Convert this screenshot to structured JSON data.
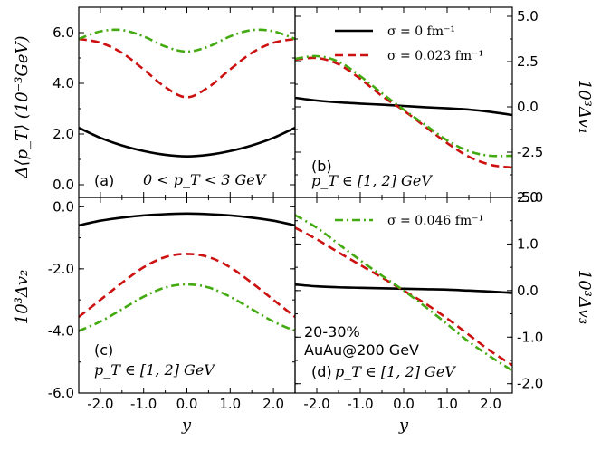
{
  "chart_data": [
    {
      "id": "a",
      "type": "line",
      "panel_label": "(a)",
      "annotation": "0 < p_T < 3 GeV",
      "ylabel": "Δ⟨p_T⟩ (10⁻³GeV)",
      "xlim": [
        -2.5,
        2.5
      ],
      "ylim": [
        -0.5,
        7.0
      ],
      "yticks": [
        0.0,
        2.0,
        4.0,
        6.0
      ],
      "ytick_labels": [
        "0.0",
        "2.0",
        "4.0",
        "6.0"
      ],
      "series": [
        {
          "name": "σ = 0 fm⁻¹",
          "style": "solid",
          "color": "#000000",
          "x": [
            -2.5,
            -2.0,
            -1.5,
            -1.0,
            -0.5,
            0.0,
            0.5,
            1.0,
            1.5,
            2.0,
            2.5
          ],
          "values": [
            2.25,
            1.85,
            1.55,
            1.33,
            1.18,
            1.12,
            1.18,
            1.33,
            1.55,
            1.85,
            2.25
          ]
        },
        {
          "name": "σ = 0.023 fm⁻¹",
          "style": "dashed",
          "color": "#cc1111",
          "x": [
            -2.5,
            -2.0,
            -1.5,
            -1.0,
            -0.5,
            0.0,
            0.5,
            1.0,
            1.5,
            2.0,
            2.5
          ],
          "values": [
            5.75,
            5.6,
            5.2,
            4.55,
            3.85,
            3.45,
            3.85,
            4.55,
            5.2,
            5.6,
            5.75
          ]
        },
        {
          "name": "σ = 0.046 fm⁻¹",
          "style": "dashdot",
          "color": "#44aa11",
          "x": [
            -2.5,
            -2.0,
            -1.5,
            -1.0,
            -0.5,
            0.0,
            0.5,
            1.0,
            1.5,
            2.0,
            2.5
          ],
          "values": [
            5.75,
            6.05,
            6.1,
            5.85,
            5.45,
            5.25,
            5.45,
            5.85,
            6.1,
            6.05,
            5.75
          ]
        }
      ]
    },
    {
      "id": "b",
      "type": "line",
      "panel_label": "(b)",
      "annotation": "p_T ∈ [1, 2] GeV",
      "ylabel": "10³Δv₁",
      "xlim": [
        -2.5,
        2.5
      ],
      "ylim": [
        -5.0,
        5.5
      ],
      "yticks": [
        5.0,
        2.5,
        0.0,
        -2.5,
        -5.0
      ],
      "ytick_labels": [
        "5.0",
        "2.5",
        "0.0",
        "-2.5",
        "-5.0"
      ],
      "series": [
        {
          "name": "σ = 0 fm⁻¹",
          "style": "solid",
          "color": "#000000",
          "x": [
            -2.5,
            -2.0,
            -1.5,
            -1.0,
            -0.5,
            0.0,
            0.5,
            1.0,
            1.5,
            2.0,
            2.5
          ],
          "values": [
            0.5,
            0.35,
            0.25,
            0.18,
            0.12,
            0.05,
            -0.02,
            -0.08,
            -0.15,
            -0.28,
            -0.45
          ]
        },
        {
          "name": "σ = 0.023 fm⁻¹",
          "style": "dashed",
          "color": "#cc1111",
          "x": [
            -2.5,
            -2.0,
            -1.5,
            -1.0,
            -0.5,
            0.0,
            0.5,
            1.0,
            1.5,
            2.0,
            2.5
          ],
          "values": [
            2.6,
            2.7,
            2.35,
            1.55,
            0.6,
            -0.2,
            -1.1,
            -2.0,
            -2.75,
            -3.2,
            -3.35
          ]
        },
        {
          "name": "σ = 0.046 fm⁻¹",
          "style": "dashdot",
          "color": "#44aa11",
          "x": [
            -2.5,
            -2.0,
            -1.5,
            -1.0,
            -0.5,
            0.0,
            0.5,
            1.0,
            1.5,
            2.0,
            2.5
          ],
          "values": [
            2.65,
            2.8,
            2.5,
            1.7,
            0.75,
            -0.15,
            -1.0,
            -1.85,
            -2.45,
            -2.7,
            -2.7
          ]
        }
      ]
    },
    {
      "id": "c",
      "type": "line",
      "panel_label": "(c)",
      "annotation": "p_T ∈ [1, 2] GeV",
      "ylabel": "10³Δv₂",
      "xlabel": "y",
      "xlim": [
        -2.5,
        2.5
      ],
      "ylim": [
        -6.0,
        0.3
      ],
      "yticks": [
        0.0,
        -2.0,
        -4.0,
        -6.0
      ],
      "ytick_labels": [
        "0.0",
        "-2.0",
        "-4.0",
        "-6.0"
      ],
      "xticks": [
        -2.0,
        -1.0,
        0.0,
        1.0,
        2.0
      ],
      "xtick_labels": [
        "-2.0",
        "-1.0",
        "0.0",
        "1.0",
        "2.0"
      ],
      "series": [
        {
          "name": "σ = 0 fm⁻¹",
          "style": "solid",
          "color": "#000000",
          "x": [
            -2.5,
            -2.0,
            -1.5,
            -1.0,
            -0.5,
            0.0,
            0.5,
            1.0,
            1.5,
            2.0,
            2.5
          ],
          "values": [
            -0.6,
            -0.45,
            -0.35,
            -0.28,
            -0.24,
            -0.22,
            -0.24,
            -0.28,
            -0.35,
            -0.45,
            -0.6
          ]
        },
        {
          "name": "σ = 0.023 fm⁻¹",
          "style": "dashed",
          "color": "#cc1111",
          "x": [
            -2.5,
            -2.0,
            -1.5,
            -1.0,
            -0.5,
            0.0,
            0.5,
            1.0,
            1.5,
            2.0,
            2.5
          ],
          "values": [
            -3.55,
            -3.0,
            -2.45,
            -1.95,
            -1.62,
            -1.52,
            -1.62,
            -1.95,
            -2.45,
            -3.0,
            -3.55
          ]
        },
        {
          "name": "σ = 0.046 fm⁻¹",
          "style": "dashdot",
          "color": "#44aa11",
          "x": [
            -2.5,
            -2.0,
            -1.5,
            -1.0,
            -0.5,
            0.0,
            0.5,
            1.0,
            1.5,
            2.0,
            2.5
          ],
          "values": [
            -4.0,
            -3.7,
            -3.3,
            -2.9,
            -2.6,
            -2.5,
            -2.6,
            -2.9,
            -3.3,
            -3.7,
            -4.0
          ]
        }
      ]
    },
    {
      "id": "d",
      "type": "line",
      "panel_label": "(d)",
      "annotation": "p_T ∈ [1, 2] GeV",
      "extra_text": [
        "20-30%",
        "AuAu@200 GeV"
      ],
      "ylabel": "10³Δv₃",
      "xlabel": "y",
      "xlim": [
        -2.5,
        2.5
      ],
      "ylim": [
        -2.2,
        2.0
      ],
      "yticks": [
        2.0,
        1.0,
        0.0,
        -1.0,
        -2.0
      ],
      "ytick_labels": [
        "2.0",
        "1.0",
        "0.0",
        "-1.0",
        "-2.0"
      ],
      "xticks": [
        -2.0,
        -1.0,
        0.0,
        1.0,
        2.0
      ],
      "xtick_labels": [
        "-2.0",
        "-1.0",
        "0.0",
        "1.0",
        "2.0"
      ],
      "series": [
        {
          "name": "σ = 0 fm⁻¹",
          "style": "solid",
          "color": "#000000",
          "x": [
            -2.5,
            -2.0,
            -1.5,
            -1.0,
            -0.5,
            0.0,
            0.5,
            1.0,
            1.5,
            2.0,
            2.5
          ],
          "values": [
            0.13,
            0.09,
            0.07,
            0.06,
            0.05,
            0.04,
            0.03,
            0.02,
            0.0,
            -0.02,
            -0.05
          ]
        },
        {
          "name": "σ = 0.023 fm⁻¹",
          "style": "dashed",
          "color": "#cc1111",
          "x": [
            -2.5,
            -2.0,
            -1.5,
            -1.0,
            -0.5,
            0.0,
            0.5,
            1.0,
            1.5,
            2.0,
            2.5
          ],
          "values": [
            1.35,
            1.1,
            0.82,
            0.55,
            0.28,
            0.0,
            -0.28,
            -0.6,
            -0.95,
            -1.3,
            -1.6
          ]
        },
        {
          "name": "σ = 0.046 fm⁻¹",
          "style": "dashdot",
          "color": "#44aa11",
          "x": [
            -2.5,
            -2.0,
            -1.5,
            -1.0,
            -0.5,
            0.0,
            0.5,
            1.0,
            1.5,
            2.0,
            2.5
          ],
          "values": [
            1.62,
            1.35,
            1.0,
            0.65,
            0.32,
            0.0,
            -0.35,
            -0.72,
            -1.1,
            -1.42,
            -1.72
          ]
        }
      ]
    }
  ],
  "legend": {
    "entries": [
      {
        "label": "σ = 0 fm⁻¹",
        "style": "solid",
        "color": "#000000"
      },
      {
        "label": "σ = 0.023 fm⁻¹",
        "style": "dashed",
        "color": "#cc1111"
      },
      {
        "label": "σ = 0.046 fm⁻¹",
        "style": "dashdot",
        "color": "#44aa11"
      }
    ]
  },
  "colors": {
    "black": "#000000",
    "red": "#cc1111",
    "green": "#44aa11"
  }
}
